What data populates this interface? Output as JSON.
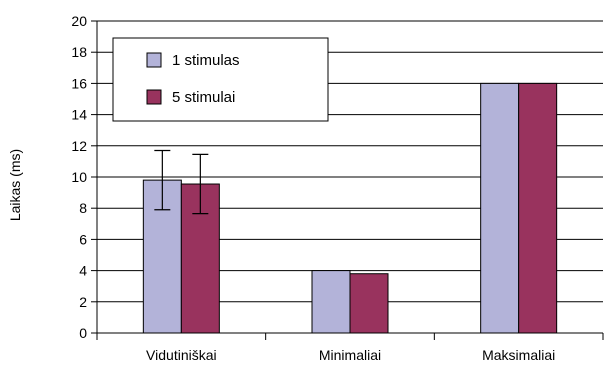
{
  "chart_data": {
    "type": "bar",
    "title": "",
    "xlabel": "",
    "ylabel": "Laikas (ms)",
    "ylim": [
      0,
      20
    ],
    "yticks": [
      0,
      2,
      4,
      6,
      8,
      10,
      12,
      14,
      16,
      18,
      20
    ],
    "grid": true,
    "legend_position": "top-left",
    "categories": [
      "Vidutiniškai",
      "Minimaliai",
      "Maksimaliai"
    ],
    "series": [
      {
        "name": "1 stimulas",
        "color": "#b3b3d9",
        "values": [
          9.8,
          4.0,
          16.0
        ],
        "errors": [
          1.9,
          null,
          null
        ]
      },
      {
        "name": "5 stimulai",
        "color": "#99335e",
        "values": [
          9.55,
          3.8,
          16.0
        ],
        "errors": [
          1.9,
          null,
          null
        ]
      }
    ]
  }
}
